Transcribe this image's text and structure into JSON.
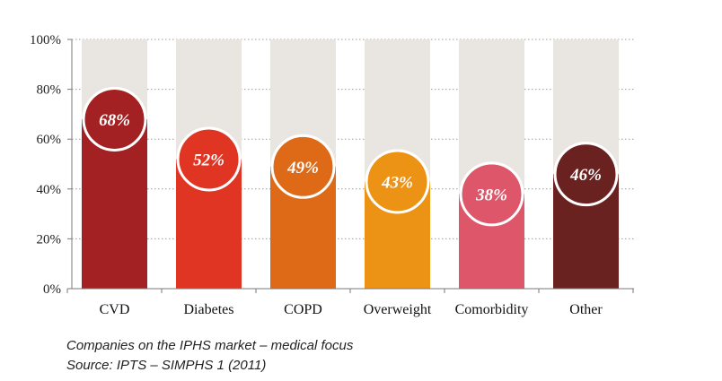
{
  "chart_data": {
    "type": "bar",
    "categories": [
      "CVD",
      "Diabetes",
      "COPD",
      "Overweight",
      "Comorbidity",
      "Other"
    ],
    "values": [
      68,
      52,
      49,
      43,
      38,
      46
    ],
    "value_labels": [
      "68%",
      "52%",
      "49%",
      "43%",
      "38%",
      "46%"
    ],
    "ylim": [
      0,
      100
    ],
    "yticks": [
      0,
      20,
      40,
      60,
      80,
      100
    ],
    "ytick_labels": [
      "0%",
      "20%",
      "40%",
      "60%",
      "80%",
      "100%"
    ],
    "grid": true,
    "background_bar_color": "#e9e6e2",
    "colors": [
      "#a32122",
      "#e13524",
      "#de6a18",
      "#ec9315",
      "#de5669",
      "#6a2220"
    ]
  },
  "captions": {
    "line1": "Companies on the IPHS market – medical focus",
    "line2": "Source: IPTS – SIMPHS 1 (2011)"
  }
}
